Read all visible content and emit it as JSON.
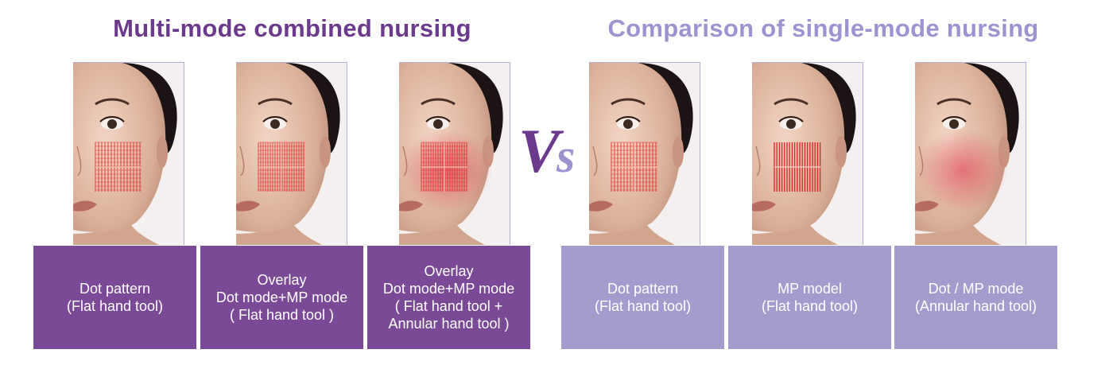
{
  "colors": {
    "left_accent": "#6b3a8c",
    "left_box": "#7a4a96",
    "right_accent": "#9c94d0",
    "right_box": "#a49ccd",
    "treatment_red": "#e02828"
  },
  "left_section": {
    "title": "Multi-mode combined nursing",
    "panels": [
      {
        "treatment": "dot-grid",
        "lines": [
          "Dot pattern",
          "(Flat hand tool)"
        ]
      },
      {
        "treatment": "mp-grid",
        "lines": [
          "Overlay",
          "Dot mode+MP mode",
          "( Flat hand tool )"
        ]
      },
      {
        "treatment": "overlay-glow",
        "lines": [
          "Overlay",
          "Dot mode+MP mode",
          "( Flat hand tool +",
          "Annular hand tool )"
        ]
      }
    ]
  },
  "vs_label": "Vs",
  "right_section": {
    "title": "Comparison of single-mode nursing",
    "panels": [
      {
        "treatment": "dot-grid",
        "lines": [
          "Dot pattern",
          "(Flat hand tool)"
        ]
      },
      {
        "treatment": "mp-lines",
        "lines": [
          "MP model",
          "(Flat hand tool)"
        ]
      },
      {
        "treatment": "annular-glow",
        "lines": [
          "Dot / MP mode",
          "(Annular hand tool)"
        ]
      }
    ]
  }
}
